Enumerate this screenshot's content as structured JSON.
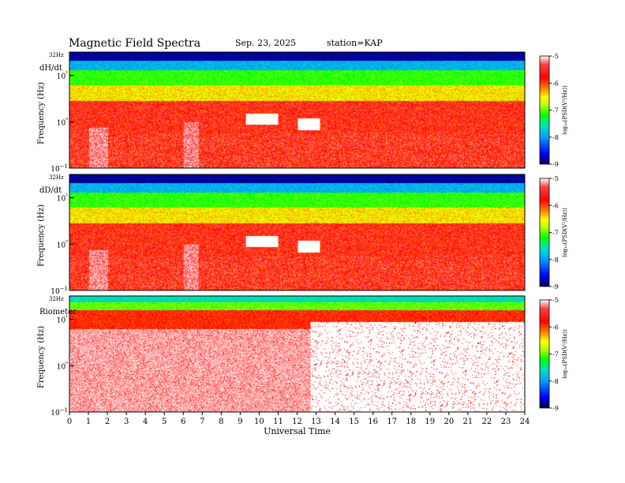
{
  "header": {
    "title": "Magnetic  Field  Spectra",
    "date": "Sep. 23, 2025",
    "station": "station=KAP"
  },
  "colors": {
    "background": "#ffffff",
    "axis": "#000000",
    "colormap": [
      "#00004a",
      "#0000ff",
      "#00a0ff",
      "#00e0c0",
      "#00ff00",
      "#c0ff00",
      "#ffff00",
      "#ff8000",
      "#ff0000",
      "#ff4040",
      "#ffffff"
    ]
  },
  "chart_data": [
    {
      "type": "heatmap",
      "panel": "dH/dt",
      "panel_label": "dH/dt",
      "top_label": "32Hz",
      "ylabel": "Frequency  (Hz)",
      "yscale": "log",
      "ylim": [
        0.1,
        32
      ],
      "y_ticks": [
        "10−1",
        "10⁰",
        "10¹"
      ],
      "xlim": [
        0,
        24
      ],
      "colorbar": {
        "label": "log₁₀(PSD(V²/Hz))",
        "range": [
          -9,
          -5
        ],
        "ticks": [
          "-5",
          "-6",
          "-7",
          "-8",
          "-9"
        ]
      }
    },
    {
      "type": "heatmap",
      "panel": "dD/dt",
      "panel_label": "dD/dt",
      "top_label": "32Hz",
      "ylabel": "Frequency  (Hz)",
      "yscale": "log",
      "ylim": [
        0.1,
        32
      ],
      "y_ticks": [
        "10−1",
        "10⁰",
        "10¹"
      ],
      "xlim": [
        0,
        24
      ],
      "colorbar": {
        "label": "log₁₀(PSD(V²/Hz))",
        "range": [
          -9,
          -5
        ],
        "ticks": [
          "-5",
          "-6",
          "-7",
          "-8",
          "-9"
        ]
      }
    },
    {
      "type": "heatmap",
      "panel": "Riometer",
      "panel_label": "Riometer",
      "top_label": "32Hz",
      "ylabel": "Frequency  (Hz)",
      "yscale": "log",
      "ylim": [
        0.1,
        32
      ],
      "y_ticks": [
        "10−1",
        "10⁰",
        "10¹"
      ],
      "xlim": [
        0,
        24
      ],
      "colorbar": {
        "label": "log₁₀(PSD(V²/Hz))",
        "range": [
          -9,
          -5
        ],
        "ticks": [
          "-5",
          "-6",
          "-7",
          "-8",
          "-9"
        ]
      }
    }
  ],
  "x_axis": {
    "label": "Universal Time",
    "ticks": [
      "0",
      "1",
      "2",
      "3",
      "4",
      "5",
      "6",
      "7",
      "8",
      "9",
      "10",
      "11",
      "12",
      "13",
      "14",
      "15",
      "16",
      "17",
      "18",
      "19",
      "20",
      "21",
      "22",
      "23",
      "24"
    ]
  }
}
